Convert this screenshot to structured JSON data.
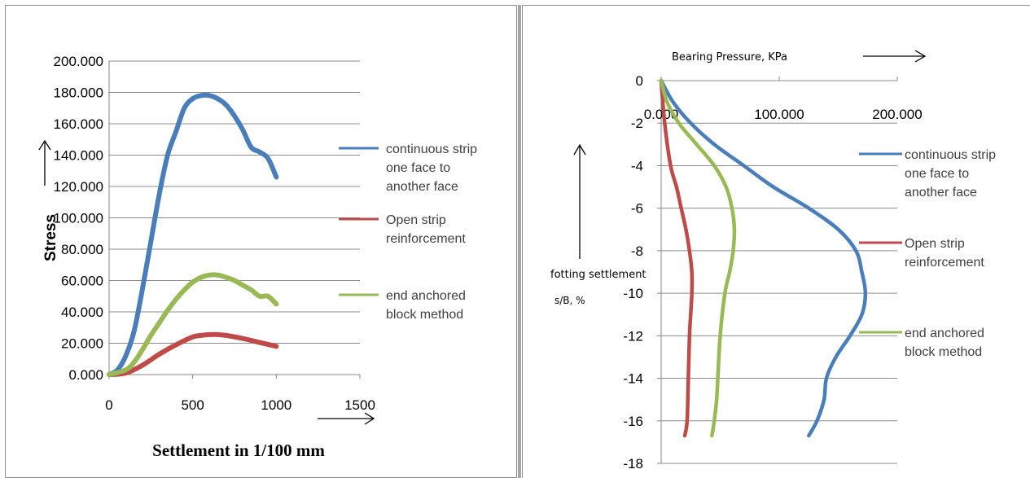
{
  "chart_data": [
    {
      "type": "line",
      "title": "",
      "xlabel": "Settlement in 1/100 mm",
      "ylabel": "Stress",
      "xlim": [
        0,
        1500
      ],
      "ylim": [
        0,
        200
      ],
      "x_ticks": [
        "0",
        "500",
        "1000",
        "1500"
      ],
      "y_ticks": [
        "0.000",
        "20.000",
        "40.000",
        "60.000",
        "80.000",
        "100.000",
        "120.000",
        "140.000",
        "160.000",
        "180.000",
        "200.000"
      ],
      "grid": true,
      "legend_position": "right",
      "series": [
        {
          "name": "continuous strip one face to another face",
          "legend_lines": [
            "continuous strip",
            "one face to",
            "another face"
          ],
          "color": "#4a7ebb",
          "x": [
            0,
            50,
            100,
            150,
            200,
            250,
            300,
            350,
            400,
            450,
            500,
            550,
            600,
            650,
            700,
            750,
            800,
            850,
            900,
            950,
            1000
          ],
          "y": [
            0,
            3,
            12,
            28,
            55,
            85,
            115,
            140,
            155,
            170,
            176,
            178,
            178,
            176,
            172,
            165,
            156,
            145,
            142,
            138,
            126
          ]
        },
        {
          "name": "Open strip reinforcement",
          "legend_lines": [
            "Open strip",
            "reinforcement"
          ],
          "color": "#be4b48",
          "x": [
            0,
            100,
            200,
            300,
            400,
            500,
            550,
            600,
            650,
            700,
            800,
            900,
            1000
          ],
          "y": [
            0,
            1,
            6,
            13,
            19,
            24,
            25,
            25.5,
            25.5,
            25,
            23,
            20.5,
            18
          ]
        },
        {
          "name": "end anchored block method",
          "legend_lines": [
            "end anchored",
            "block method"
          ],
          "color": "#98b954",
          "x": [
            0,
            100,
            150,
            200,
            250,
            300,
            350,
            400,
            450,
            500,
            550,
            600,
            650,
            700,
            750,
            800,
            850,
            900,
            950,
            1000
          ],
          "y": [
            0,
            3,
            8,
            16,
            25,
            33,
            41,
            48,
            54,
            59,
            62,
            63.5,
            63.5,
            62,
            60,
            57,
            54,
            50,
            50,
            45
          ]
        }
      ]
    },
    {
      "type": "line",
      "title": "",
      "xlabel": "Bearing Pressure, KPa",
      "ylabel_lines": [
        "fotting settlement",
        "s/B, %"
      ],
      "xlim": [
        0,
        200
      ],
      "ylim": [
        -18,
        0
      ],
      "x_ticks": [
        "0.000",
        "100.000",
        "200.000"
      ],
      "y_ticks": [
        "0",
        "-2",
        "-4",
        "-6",
        "-8",
        "-10",
        "-12",
        "-14",
        "-16",
        "-18"
      ],
      "grid": true,
      "legend_position": "right",
      "series": [
        {
          "name": "continuous strip one face to another face",
          "legend_lines": [
            "continuous strip",
            "one face to",
            "another face"
          ],
          "color": "#4a7ebb",
          "x": [
            0,
            10,
            25,
            45,
            70,
            95,
            125,
            150,
            165,
            170,
            173,
            170,
            160,
            148,
            140,
            138,
            132,
            125
          ],
          "y": [
            0,
            -1,
            -2,
            -3,
            -4,
            -5,
            -6,
            -7,
            -8,
            -9,
            -10,
            -11,
            -12,
            -13,
            -14,
            -15,
            -16,
            -16.7
          ]
        },
        {
          "name": "Open strip reinforcement",
          "legend_lines": [
            "Open strip",
            "reinforcement"
          ],
          "color": "#be4b48",
          "x": [
            0,
            3,
            8,
            13,
            17,
            21,
            24,
            26,
            26,
            25,
            24,
            23,
            22,
            20
          ],
          "y": [
            0,
            -2,
            -4,
            -5,
            -6,
            -7,
            -8,
            -9,
            -10,
            -11,
            -12,
            -14,
            -16,
            -16.7
          ]
        },
        {
          "name": "end anchored block method",
          "legend_lines": [
            "end anchored",
            "block method"
          ],
          "color": "#98b954",
          "x": [
            0,
            5,
            15,
            30,
            45,
            55,
            60,
            62,
            61,
            58,
            54,
            50,
            48,
            47,
            45,
            43
          ],
          "y": [
            0,
            -1,
            -2,
            -3,
            -4,
            -5,
            -6,
            -7,
            -8,
            -9,
            -10,
            -12,
            -14,
            -15,
            -16,
            -16.7
          ]
        }
      ]
    }
  ]
}
